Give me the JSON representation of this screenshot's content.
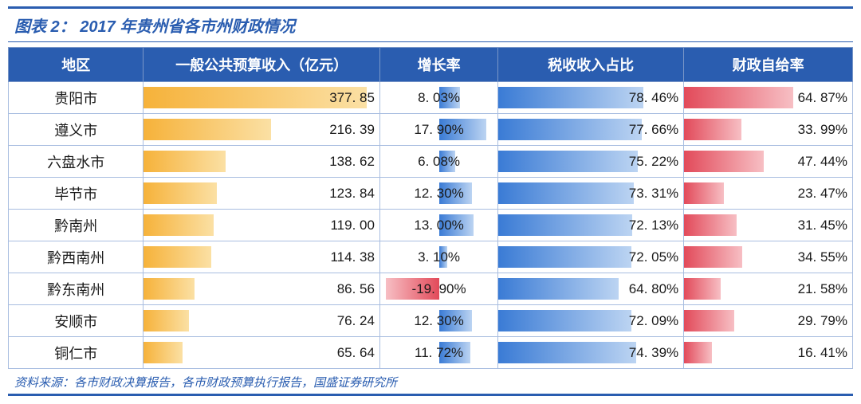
{
  "title": "图表 2：  2017 年贵州省各市州财政情况",
  "source": "资料来源：各市财政决算报告，各市财政预算执行报告，国盛证券研究所",
  "columns": {
    "region": "地区",
    "budget": "一般公共预算收入（亿元）",
    "growth": "增长率",
    "tax": "税收收入占比",
    "self": "财政自给率"
  },
  "style": {
    "header_bg": "#2a5db0",
    "header_fg": "#ffffff",
    "border_color": "#a8bde0",
    "title_color": "#2a5db0",
    "budget_grad_from": "#f6b23a",
    "budget_grad_to": "#fbe0a4",
    "growth_pos_from": "#3a7bd5",
    "growth_pos_to": "#bcd4f2",
    "growth_neg_from": "#f7bfc4",
    "growth_neg_to": "#e24a5a",
    "tax_grad_from": "#3a7bd5",
    "tax_grad_to": "#bcd4f2",
    "self_grad_from": "#e24a5a",
    "self_grad_to": "#f7bfc4",
    "budget_max": 400,
    "growth_abs_max": 22,
    "tax_max": 100,
    "self_max": 100
  },
  "rows": [
    {
      "region": "贵阳市",
      "budget": 377.85,
      "budget_label": "377. 85",
      "growth": 8.03,
      "growth_label": "8. 03%",
      "tax": 78.46,
      "tax_label": "78. 46%",
      "self": 64.87,
      "self_label": "64. 87%"
    },
    {
      "region": "遵义市",
      "budget": 216.39,
      "budget_label": "216. 39",
      "growth": 17.9,
      "growth_label": "17. 90%",
      "tax": 77.66,
      "tax_label": "77. 66%",
      "self": 33.99,
      "self_label": "33. 99%"
    },
    {
      "region": "六盘水市",
      "budget": 138.62,
      "budget_label": "138. 62",
      "growth": 6.08,
      "growth_label": "6. 08%",
      "tax": 75.22,
      "tax_label": "75. 22%",
      "self": 47.44,
      "self_label": "47. 44%"
    },
    {
      "region": "毕节市",
      "budget": 123.84,
      "budget_label": "123. 84",
      "growth": 12.3,
      "growth_label": "12. 30%",
      "tax": 73.31,
      "tax_label": "73. 31%",
      "self": 23.47,
      "self_label": "23. 47%"
    },
    {
      "region": "黔南州",
      "budget": 119.0,
      "budget_label": "119. 00",
      "growth": 13.0,
      "growth_label": "13. 00%",
      "tax": 72.13,
      "tax_label": "72. 13%",
      "self": 31.45,
      "self_label": "31. 45%"
    },
    {
      "region": "黔西南州",
      "budget": 114.38,
      "budget_label": "114. 38",
      "growth": 3.1,
      "growth_label": "3. 10%",
      "tax": 72.05,
      "tax_label": "72. 05%",
      "self": 34.55,
      "self_label": "34. 55%"
    },
    {
      "region": "黔东南州",
      "budget": 86.56,
      "budget_label": "86. 56",
      "growth": -19.9,
      "growth_label": "-19. 90%",
      "tax": 64.8,
      "tax_label": "64. 80%",
      "self": 21.58,
      "self_label": "21. 58%"
    },
    {
      "region": "安顺市",
      "budget": 76.24,
      "budget_label": "76. 24",
      "growth": 12.3,
      "growth_label": "12. 30%",
      "tax": 72.09,
      "tax_label": "72. 09%",
      "self": 29.79,
      "self_label": "29. 79%"
    },
    {
      "region": "铜仁市",
      "budget": 65.64,
      "budget_label": "65. 64",
      "growth": 11.72,
      "growth_label": "11. 72%",
      "tax": 74.39,
      "tax_label": "74. 39%",
      "self": 16.41,
      "self_label": "16. 41%"
    }
  ]
}
